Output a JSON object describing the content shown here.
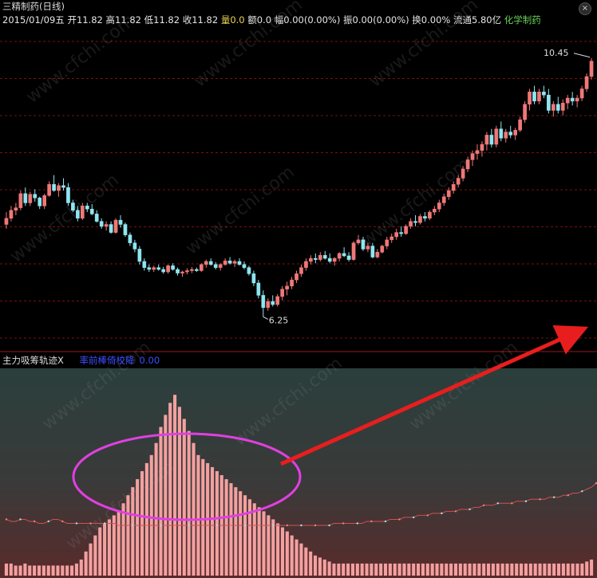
{
  "header": {
    "title_line": "三精制药(日线)",
    "date": "2015/01/09五",
    "fields": [
      {
        "label": "开",
        "value": "11.82"
      },
      {
        "label": "高",
        "value": "11.82"
      },
      {
        "label": "低",
        "value": "11.82"
      },
      {
        "label": "收",
        "value": "11.82"
      },
      {
        "label": "量",
        "value": "0.0"
      },
      {
        "label": "额",
        "value": "0.0"
      },
      {
        "label": "幅",
        "value": "0.00(0.00%)"
      },
      {
        "label": "振",
        "value": "0.00(0.00%)"
      },
      {
        "label": "换",
        "value": "0.00%"
      },
      {
        "label": "流通",
        "value": "5.80亿"
      }
    ],
    "sector": "化学制药"
  },
  "watermark": "www.cfchi.com",
  "colors": {
    "up": "#f07878",
    "down": "#8ee6f0",
    "grid": "#7a1010",
    "indicator_bar": "#f4a0a0",
    "ellipse": "#e040e0",
    "arrow": "#e81e1e",
    "legend": "#3a4fff"
  },
  "chart_data": [
    {
      "type": "candlestick",
      "title": "三精制药(日线)",
      "annotations": [
        {
          "label": "10.45",
          "meaning": "high"
        },
        {
          "label": "6.25",
          "meaning": "low"
        }
      ],
      "ylim": [
        5.7,
        10.9
      ],
      "grid": true,
      "ohlc": [
        [
          7.75,
          7.95,
          7.68,
          7.85
        ],
        [
          7.85,
          8.05,
          7.8,
          7.98
        ],
        [
          7.98,
          8.1,
          7.9,
          8.02
        ],
        [
          8.02,
          8.3,
          7.98,
          8.25
        ],
        [
          8.25,
          8.35,
          8.05,
          8.1
        ],
        [
          8.1,
          8.28,
          8.05,
          8.24
        ],
        [
          8.24,
          8.32,
          8.12,
          8.18
        ],
        [
          8.18,
          8.2,
          8.0,
          8.05
        ],
        [
          8.05,
          8.25,
          8.0,
          8.22
        ],
        [
          8.22,
          8.45,
          8.2,
          8.4
        ],
        [
          8.4,
          8.55,
          8.28,
          8.3
        ],
        [
          8.3,
          8.42,
          8.2,
          8.38
        ],
        [
          8.38,
          8.5,
          8.3,
          8.35
        ],
        [
          8.35,
          8.42,
          8.05,
          8.1
        ],
        [
          8.1,
          8.15,
          7.95,
          7.98
        ],
        [
          7.98,
          8.05,
          7.8,
          7.85
        ],
        [
          7.85,
          8.1,
          7.82,
          8.05
        ],
        [
          8.05,
          8.1,
          7.95,
          8.0
        ],
        [
          8.0,
          8.08,
          7.9,
          7.92
        ],
        [
          7.92,
          7.98,
          7.78,
          7.8
        ],
        [
          7.8,
          7.85,
          7.68,
          7.72
        ],
        [
          7.72,
          7.8,
          7.65,
          7.75
        ],
        [
          7.75,
          7.8,
          7.6,
          7.62
        ],
        [
          7.62,
          7.85,
          7.6,
          7.82
        ],
        [
          7.82,
          7.9,
          7.7,
          7.75
        ],
        [
          7.75,
          7.78,
          7.55,
          7.58
        ],
        [
          7.58,
          7.62,
          7.4,
          7.45
        ],
        [
          7.45,
          7.5,
          7.3,
          7.35
        ],
        [
          7.35,
          7.4,
          7.1,
          7.15
        ],
        [
          7.15,
          7.2,
          7.0,
          7.05
        ],
        [
          7.05,
          7.1,
          6.98,
          7.02
        ],
        [
          7.02,
          7.08,
          6.98,
          7.05
        ],
        [
          7.05,
          7.1,
          7.0,
          7.02
        ],
        [
          7.02,
          7.06,
          6.95,
          6.98
        ],
        [
          6.98,
          7.1,
          6.95,
          7.08
        ],
        [
          7.08,
          7.12,
          7.0,
          7.02
        ],
        [
          7.02,
          7.05,
          6.92,
          6.96
        ],
        [
          6.96,
          7.0,
          6.9,
          6.98
        ],
        [
          6.98,
          7.04,
          6.94,
          7.0
        ],
        [
          7.0,
          7.06,
          6.96,
          7.02
        ],
        [
          7.02,
          7.05,
          6.98,
          7.0
        ],
        [
          7.0,
          7.12,
          6.98,
          7.1
        ],
        [
          7.1,
          7.18,
          7.05,
          7.15
        ],
        [
          7.15,
          7.2,
          7.08,
          7.1
        ],
        [
          7.1,
          7.14,
          7.02,
          7.05
        ],
        [
          7.05,
          7.12,
          7.0,
          7.1
        ],
        [
          7.1,
          7.2,
          7.08,
          7.16
        ],
        [
          7.16,
          7.22,
          7.1,
          7.12
        ],
        [
          7.12,
          7.18,
          7.06,
          7.15
        ],
        [
          7.15,
          7.2,
          7.08,
          7.1
        ],
        [
          7.1,
          7.15,
          7.02,
          7.05
        ],
        [
          7.05,
          7.08,
          6.92,
          6.95
        ],
        [
          6.95,
          7.0,
          6.75,
          6.8
        ],
        [
          6.8,
          6.85,
          6.55,
          6.6
        ],
        [
          6.6,
          6.68,
          6.25,
          6.4
        ],
        [
          6.4,
          6.55,
          6.35,
          6.5
        ],
        [
          6.5,
          6.6,
          6.42,
          6.45
        ],
        [
          6.45,
          6.62,
          6.42,
          6.58
        ],
        [
          6.58,
          6.75,
          6.52,
          6.7
        ],
        [
          6.7,
          6.82,
          6.6,
          6.75
        ],
        [
          6.75,
          6.9,
          6.7,
          6.85
        ],
        [
          6.85,
          7.0,
          6.8,
          6.95
        ],
        [
          6.95,
          7.1,
          6.9,
          7.05
        ],
        [
          7.05,
          7.2,
          7.0,
          7.15
        ],
        [
          7.15,
          7.25,
          7.1,
          7.2
        ],
        [
          7.2,
          7.28,
          7.12,
          7.18
        ],
        [
          7.18,
          7.3,
          7.15,
          7.25
        ],
        [
          7.25,
          7.32,
          7.18,
          7.2
        ],
        [
          7.2,
          7.28,
          7.12,
          7.15
        ],
        [
          7.15,
          7.22,
          7.08,
          7.2
        ],
        [
          7.2,
          7.3,
          7.15,
          7.28
        ],
        [
          7.28,
          7.38,
          7.22,
          7.24
        ],
        [
          7.24,
          7.3,
          7.15,
          7.18
        ],
        [
          7.18,
          7.48,
          7.16,
          7.45
        ],
        [
          7.45,
          7.58,
          7.42,
          7.5
        ],
        [
          7.5,
          7.55,
          7.32,
          7.35
        ],
        [
          7.35,
          7.45,
          7.3,
          7.4
        ],
        [
          7.4,
          7.45,
          7.2,
          7.22
        ],
        [
          7.22,
          7.35,
          7.2,
          7.3
        ],
        [
          7.3,
          7.42,
          7.28,
          7.4
        ],
        [
          7.4,
          7.55,
          7.35,
          7.5
        ],
        [
          7.5,
          7.6,
          7.45,
          7.55
        ],
        [
          7.55,
          7.68,
          7.5,
          7.62
        ],
        [
          7.62,
          7.72,
          7.55,
          7.6
        ],
        [
          7.6,
          7.75,
          7.58,
          7.72
        ],
        [
          7.72,
          7.85,
          7.68,
          7.8
        ],
        [
          7.8,
          7.9,
          7.72,
          7.78
        ],
        [
          7.78,
          7.92,
          7.75,
          7.88
        ],
        [
          7.88,
          7.95,
          7.8,
          7.85
        ],
        [
          7.85,
          7.98,
          7.82,
          7.95
        ],
        [
          7.95,
          8.05,
          7.9,
          8.0
        ],
        [
          8.0,
          8.15,
          7.95,
          8.1
        ],
        [
          8.1,
          8.25,
          8.05,
          8.2
        ],
        [
          8.2,
          8.35,
          8.15,
          8.3
        ],
        [
          8.3,
          8.45,
          8.25,
          8.4
        ],
        [
          8.4,
          8.55,
          8.35,
          8.5
        ],
        [
          8.5,
          8.7,
          8.45,
          8.65
        ],
        [
          8.65,
          8.85,
          8.6,
          8.8
        ],
        [
          8.8,
          8.95,
          8.7,
          8.9
        ],
        [
          8.9,
          9.05,
          8.8,
          8.95
        ],
        [
          8.95,
          9.1,
          8.85,
          9.05
        ],
        [
          9.05,
          9.25,
          8.95,
          9.2
        ],
        [
          9.2,
          9.3,
          9.0,
          9.05
        ],
        [
          9.05,
          9.35,
          9.0,
          9.3
        ],
        [
          9.3,
          9.42,
          9.1,
          9.15
        ],
        [
          9.15,
          9.3,
          9.08,
          9.25
        ],
        [
          9.25,
          9.35,
          9.15,
          9.2
        ],
        [
          9.2,
          9.32,
          9.12,
          9.28
        ],
        [
          9.28,
          9.5,
          9.25,
          9.45
        ],
        [
          9.45,
          9.75,
          9.4,
          9.7
        ],
        [
          9.7,
          9.95,
          9.6,
          9.9
        ],
        [
          9.9,
          10.0,
          9.7,
          9.75
        ],
        [
          9.75,
          9.95,
          9.7,
          9.9
        ],
        [
          9.9,
          10.0,
          9.8,
          9.85
        ],
        [
          9.85,
          9.95,
          9.55,
          9.6
        ],
        [
          9.6,
          9.75,
          9.5,
          9.7
        ],
        [
          9.7,
          9.82,
          9.55,
          9.6
        ],
        [
          9.6,
          9.78,
          9.52,
          9.72
        ],
        [
          9.72,
          9.85,
          9.62,
          9.8
        ],
        [
          9.8,
          9.9,
          9.68,
          9.75
        ],
        [
          9.75,
          9.85,
          9.65,
          9.8
        ],
        [
          9.8,
          10.0,
          9.75,
          9.95
        ],
        [
          9.95,
          10.2,
          9.9,
          10.15
        ],
        [
          10.15,
          10.45,
          10.1,
          10.4
        ]
      ]
    },
    {
      "type": "bar",
      "title": "主力吸筹轨迹X",
      "legend": [
        "率前棒倚校降",
        "0.00"
      ],
      "ylim": [
        0,
        100
      ],
      "values": [
        6,
        6,
        5,
        5,
        6,
        5,
        5,
        5,
        5,
        5,
        5,
        5,
        5,
        5,
        5,
        6,
        8,
        12,
        16,
        20,
        24,
        26,
        28,
        30,
        32,
        36,
        40,
        44,
        48,
        52,
        56,
        60,
        66,
        74,
        80,
        86,
        90,
        84,
        78,
        72,
        66,
        60,
        58,
        56,
        54,
        52,
        50,
        48,
        46,
        44,
        42,
        40,
        38,
        36,
        34,
        32,
        30,
        28,
        26,
        24,
        22,
        20,
        18,
        16,
        14,
        12,
        10,
        9,
        8,
        7,
        6,
        6,
        6,
        6,
        6,
        6,
        6,
        6,
        6,
        6,
        6,
        6,
        6,
        6,
        6,
        6,
        6,
        6,
        6,
        6,
        6,
        6,
        6,
        6,
        6,
        6,
        6,
        6,
        6,
        6,
        6,
        6,
        6,
        6,
        6,
        6,
        6,
        6,
        6,
        6,
        6,
        6,
        6,
        6,
        6,
        6,
        6,
        6,
        6,
        6,
        6,
        6,
        6,
        6,
        7,
        8
      ],
      "line_values": [
        28,
        27,
        27,
        28,
        28,
        27,
        27,
        26,
        26,
        27,
        28,
        28,
        27,
        26,
        26,
        26,
        26,
        26,
        26,
        26,
        26,
        26,
        26,
        26,
        25,
        25,
        25,
        25,
        25,
        25,
        25,
        25,
        25,
        25,
        25,
        25,
        25,
        25,
        25,
        25,
        25,
        25,
        25,
        25,
        25,
        25,
        25,
        25,
        25,
        25,
        25,
        25,
        25,
        25,
        25,
        25,
        25,
        25,
        25,
        25,
        25,
        25,
        25,
        25,
        25,
        25,
        25,
        25,
        25,
        25,
        26,
        26,
        26,
        26,
        26,
        26,
        26,
        27,
        27,
        27,
        27,
        27,
        28,
        28,
        28,
        29,
        29,
        29,
        30,
        30,
        30,
        31,
        31,
        31,
        32,
        32,
        32,
        33,
        33,
        33,
        34,
        34,
        35,
        35,
        35,
        36,
        36,
        36,
        36,
        37,
        37,
        37,
        38,
        38,
        38,
        38,
        39,
        39,
        39,
        40,
        40,
        41,
        41,
        42,
        43,
        44,
        46,
        48
      ]
    }
  ]
}
